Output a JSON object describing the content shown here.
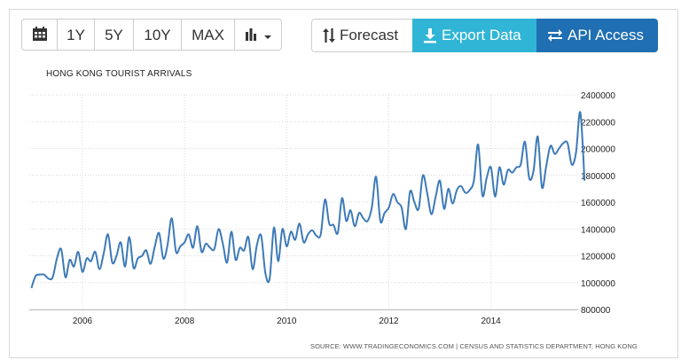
{
  "toolbar": {
    "calendar_icon": "calendar-icon",
    "range_buttons": [
      "1Y",
      "5Y",
      "10Y",
      "MAX"
    ],
    "chart_type_icon": "bar-chart-icon"
  },
  "actions": {
    "forecast_label": "Forecast",
    "export_label": "Export Data",
    "api_label": "API Access",
    "forecast_icon": "sort-arrows-icon",
    "export_icon": "download-icon",
    "api_icon": "exchange-arrows-icon",
    "export_color": "#31b5d6",
    "api_color": "#1f6fb2"
  },
  "chart_data": {
    "type": "line",
    "title": "HONG KONG TOURIST ARRIVALS",
    "source": "SOURCE: WWW.TRADINGECONOMICS.COM | CENSUS AND STATISTICS DEPARTMENT, HONG KONG",
    "xlabel": "",
    "ylabel": "",
    "x_ticks": [
      "2006",
      "2008",
      "2010",
      "2012",
      "2014"
    ],
    "y_ticks": [
      "800000",
      "1000000",
      "1200000",
      "1400000",
      "1600000",
      "1800000",
      "2000000",
      "2200000",
      "2400000"
    ],
    "ylim": [
      800000,
      2400000
    ],
    "xlim": [
      "2005-01",
      "2015-09"
    ],
    "grid": true,
    "line_color": "#3d7ab8",
    "start": "2005-01",
    "frequency": "monthly",
    "values": [
      960000,
      1050000,
      1060000,
      1060000,
      1030000,
      1040000,
      1180000,
      1250000,
      1040000,
      1170000,
      1120000,
      1230000,
      1080000,
      1180000,
      1160000,
      1230000,
      1100000,
      1220000,
      1360000,
      1150000,
      1200000,
      1300000,
      1120000,
      1340000,
      1110000,
      1180000,
      1200000,
      1240000,
      1140000,
      1270000,
      1370000,
      1180000,
      1280000,
      1480000,
      1230000,
      1270000,
      1300000,
      1360000,
      1260000,
      1420000,
      1230000,
      1290000,
      1260000,
      1250000,
      1400000,
      1290000,
      1150000,
      1380000,
      1170000,
      1260000,
      1240000,
      1340000,
      1100000,
      1280000,
      1350000,
      1070000,
      1030000,
      1410000,
      1160000,
      1400000,
      1270000,
      1380000,
      1320000,
      1440000,
      1300000,
      1360000,
      1390000,
      1350000,
      1360000,
      1620000,
      1440000,
      1430000,
      1370000,
      1630000,
      1460000,
      1540000,
      1420000,
      1520000,
      1480000,
      1460000,
      1560000,
      1790000,
      1460000,
      1520000,
      1560000,
      1660000,
      1600000,
      1560000,
      1400000,
      1680000,
      1600000,
      1550000,
      1800000,
      1670000,
      1510000,
      1640000,
      1760000,
      1550000,
      1700000,
      1590000,
      1690000,
      1720000,
      1670000,
      1690000,
      1760000,
      2030000,
      1650000,
      1780000,
      1860000,
      1640000,
      1860000,
      1730000,
      1840000,
      1820000,
      1860000,
      1880000,
      2050000,
      1780000,
      1830000,
      2090000,
      1710000,
      1870000,
      2020000,
      1960000,
      2000000,
      2040000,
      2040000,
      1880000,
      1970000,
      2270000,
      1760000
    ]
  }
}
